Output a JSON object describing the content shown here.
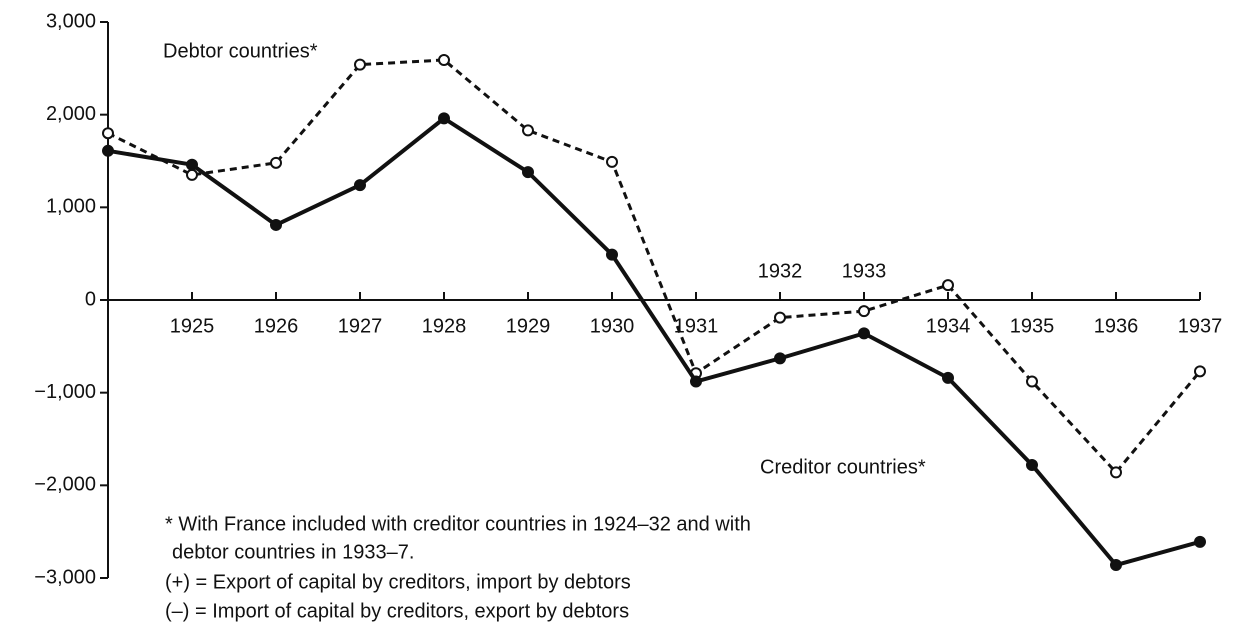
{
  "chart_data": {
    "type": "line",
    "x": [
      1924,
      1925,
      1926,
      1927,
      1928,
      1929,
      1930,
      1931,
      1932,
      1933,
      1934,
      1935,
      1936,
      1937
    ],
    "xlim": [
      1924,
      1937
    ],
    "xticks": [
      1925,
      1926,
      1927,
      1928,
      1929,
      1930,
      1931,
      1932,
      1933,
      1934,
      1935,
      1936,
      1937
    ],
    "xtick_labels_above": [
      1932,
      1933
    ],
    "ylim": [
      -3000,
      3000
    ],
    "yticks": [
      {
        "value": -3000,
        "label": "−3,000"
      },
      {
        "value": -2000,
        "label": "−2,000"
      },
      {
        "value": -1000,
        "label": "−1,000"
      },
      0,
      {
        "value": 1000,
        "label": "1,000"
      },
      {
        "value": 2000,
        "label": "2,000"
      },
      {
        "value": 3000,
        "label": "3,000"
      }
    ],
    "grid": false,
    "series": [
      {
        "name": "Debtor countries*",
        "color": "#111111",
        "line_style": "dashed",
        "marker": "open",
        "values": [
          1800,
          1350,
          1480,
          2540,
          2590,
          1830,
          1490,
          -790,
          -190,
          -120,
          160,
          -880,
          -1860,
          -770
        ]
      },
      {
        "name": "Creditor countries*",
        "color": "#111111",
        "line_style": "solid",
        "marker": "filled",
        "values": [
          1610,
          1460,
          810,
          1240,
          1960,
          1380,
          490,
          -880,
          -630,
          -360,
          -840,
          -1780,
          -2860,
          -2610
        ]
      }
    ],
    "annotations": [
      "* With France included with creditor countries in 1924–32 and with",
      "debtor countries in 1933–7.",
      "(+) = Export of capital by creditors, import by debtors",
      "(–) = Import of capital by creditors, export by debtors"
    ]
  }
}
